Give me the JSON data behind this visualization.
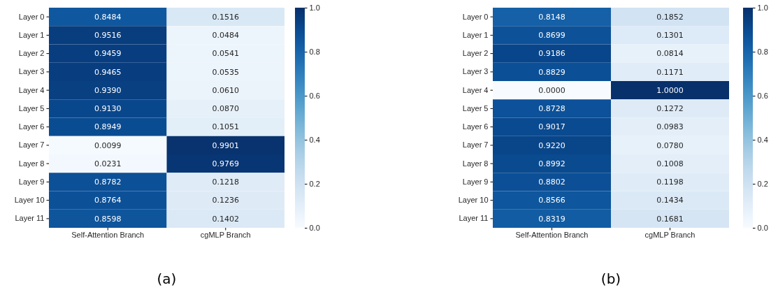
{
  "chart_data": [
    {
      "type": "heatmap",
      "title": "(a)",
      "categories": [
        "Self-Attention Branch",
        "cgMLP Branch"
      ],
      "y_categories": [
        "Layer 0",
        "Layer 1",
        "Layer 2",
        "Layer 3",
        "Layer 4",
        "Layer 5",
        "Layer 6",
        "Layer 7",
        "Layer 8",
        "Layer 9",
        "Layer 10",
        "Layer 11"
      ],
      "cells": [
        [
          0.8484,
          0.1516
        ],
        [
          0.9516,
          0.0484
        ],
        [
          0.9459,
          0.0541
        ],
        [
          0.9465,
          0.0535
        ],
        [
          0.939,
          0.061
        ],
        [
          0.913,
          0.087
        ],
        [
          0.8949,
          0.1051
        ],
        [
          0.0099,
          0.9901
        ],
        [
          0.0231,
          0.9769
        ],
        [
          0.8782,
          0.1218
        ],
        [
          0.8764,
          0.1236
        ],
        [
          0.8598,
          0.1402
        ]
      ],
      "cell_labels": [
        [
          "0.8484",
          "0.1516"
        ],
        [
          "0.9516",
          "0.0484"
        ],
        [
          "0.9459",
          "0.0541"
        ],
        [
          "0.9465",
          "0.0535"
        ],
        [
          "0.9390",
          "0.0610"
        ],
        [
          "0.9130",
          "0.0870"
        ],
        [
          "0.8949",
          "0.1051"
        ],
        [
          "0.0099",
          "0.9901"
        ],
        [
          "0.0231",
          "0.9769"
        ],
        [
          "0.8782",
          "0.1218"
        ],
        [
          "0.8764",
          "0.1236"
        ],
        [
          "0.8598",
          "0.1402"
        ]
      ],
      "clim": [
        0,
        1
      ],
      "cticks": [
        {
          "value": 0,
          "label": "0.0"
        },
        {
          "value": 0.2,
          "label": "0.2"
        },
        {
          "value": 0.4,
          "label": "0.4"
        },
        {
          "value": 0.6,
          "label": "0.6"
        },
        {
          "value": 0.8,
          "label": "0.8"
        },
        {
          "value": 1,
          "label": "1.0"
        }
      ]
    },
    {
      "type": "heatmap",
      "title": "(b)",
      "categories": [
        "Self-Attention Branch",
        "cgMLP Branch"
      ],
      "y_categories": [
        "Layer 0",
        "Layer 1",
        "Layer 2",
        "Layer 3",
        "Layer 4",
        "Layer 5",
        "Layer 6",
        "Layer 7",
        "Layer 8",
        "Layer 9",
        "Layer 10",
        "Layer 11"
      ],
      "cells": [
        [
          0.8148,
          0.1852
        ],
        [
          0.8699,
          0.1301
        ],
        [
          0.9186,
          0.0814
        ],
        [
          0.8829,
          0.1171
        ],
        [
          0.0,
          1.0
        ],
        [
          0.8728,
          0.1272
        ],
        [
          0.9017,
          0.0983
        ],
        [
          0.922,
          0.078
        ],
        [
          0.8992,
          0.1008
        ],
        [
          0.8802,
          0.1198
        ],
        [
          0.8566,
          0.1434
        ],
        [
          0.8319,
          0.1681
        ]
      ],
      "cell_labels": [
        [
          "0.8148",
          "0.1852"
        ],
        [
          "0.8699",
          "0.1301"
        ],
        [
          "0.9186",
          "0.0814"
        ],
        [
          "0.8829",
          "0.1171"
        ],
        [
          "0.0000",
          "1.0000"
        ],
        [
          "0.8728",
          "0.1272"
        ],
        [
          "0.9017",
          "0.0983"
        ],
        [
          "0.9220",
          "0.0780"
        ],
        [
          "0.8992",
          "0.1008"
        ],
        [
          "0.8802",
          "0.1198"
        ],
        [
          "0.8566",
          "0.1434"
        ],
        [
          "0.8319",
          "0.1681"
        ]
      ],
      "clim": [
        0,
        1
      ],
      "cticks": [
        {
          "value": 0,
          "label": "0.0"
        },
        {
          "value": 0.2,
          "label": "0.2"
        },
        {
          "value": 0.4,
          "label": "0.4"
        },
        {
          "value": 0.6,
          "label": "0.6"
        },
        {
          "value": 0.8,
          "label": "0.8"
        },
        {
          "value": 1,
          "label": "1.0"
        }
      ]
    }
  ]
}
